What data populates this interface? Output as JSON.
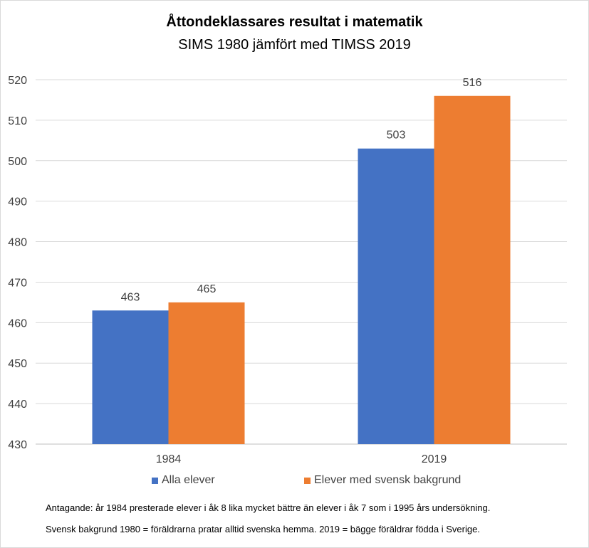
{
  "chart_data": {
    "type": "bar",
    "title": "Åttondeklassares resultat i matematik",
    "subtitle": "SIMS 1980 jämfört med TIMSS 2019",
    "categories": [
      "1984",
      "2019"
    ],
    "series": [
      {
        "name": "Alla elever",
        "values": [
          463,
          503
        ],
        "labels": [
          "463",
          "503"
        ],
        "color": "#4472c4"
      },
      {
        "name": "Elever med svensk bakgrund",
        "values": [
          465,
          516
        ],
        "labels": [
          "465",
          "516"
        ],
        "color": "#ed7d31"
      }
    ],
    "ylim": [
      430,
      520
    ],
    "yticks": [
      "430",
      "440",
      "450",
      "460",
      "470",
      "480",
      "490",
      "500",
      "510",
      "520"
    ],
    "grid": true,
    "legend_position": "bottom",
    "notes": [
      "Antagande: år 1984 presterade elever i åk 8 lika mycket bättre än elever i åk 7 som i 1995 års undersökning.",
      "Svensk bakgrund 1980 = föräldrarna pratar alltid svenska hemma. 2019 = bägge föräldrar födda i Sverige."
    ]
  }
}
